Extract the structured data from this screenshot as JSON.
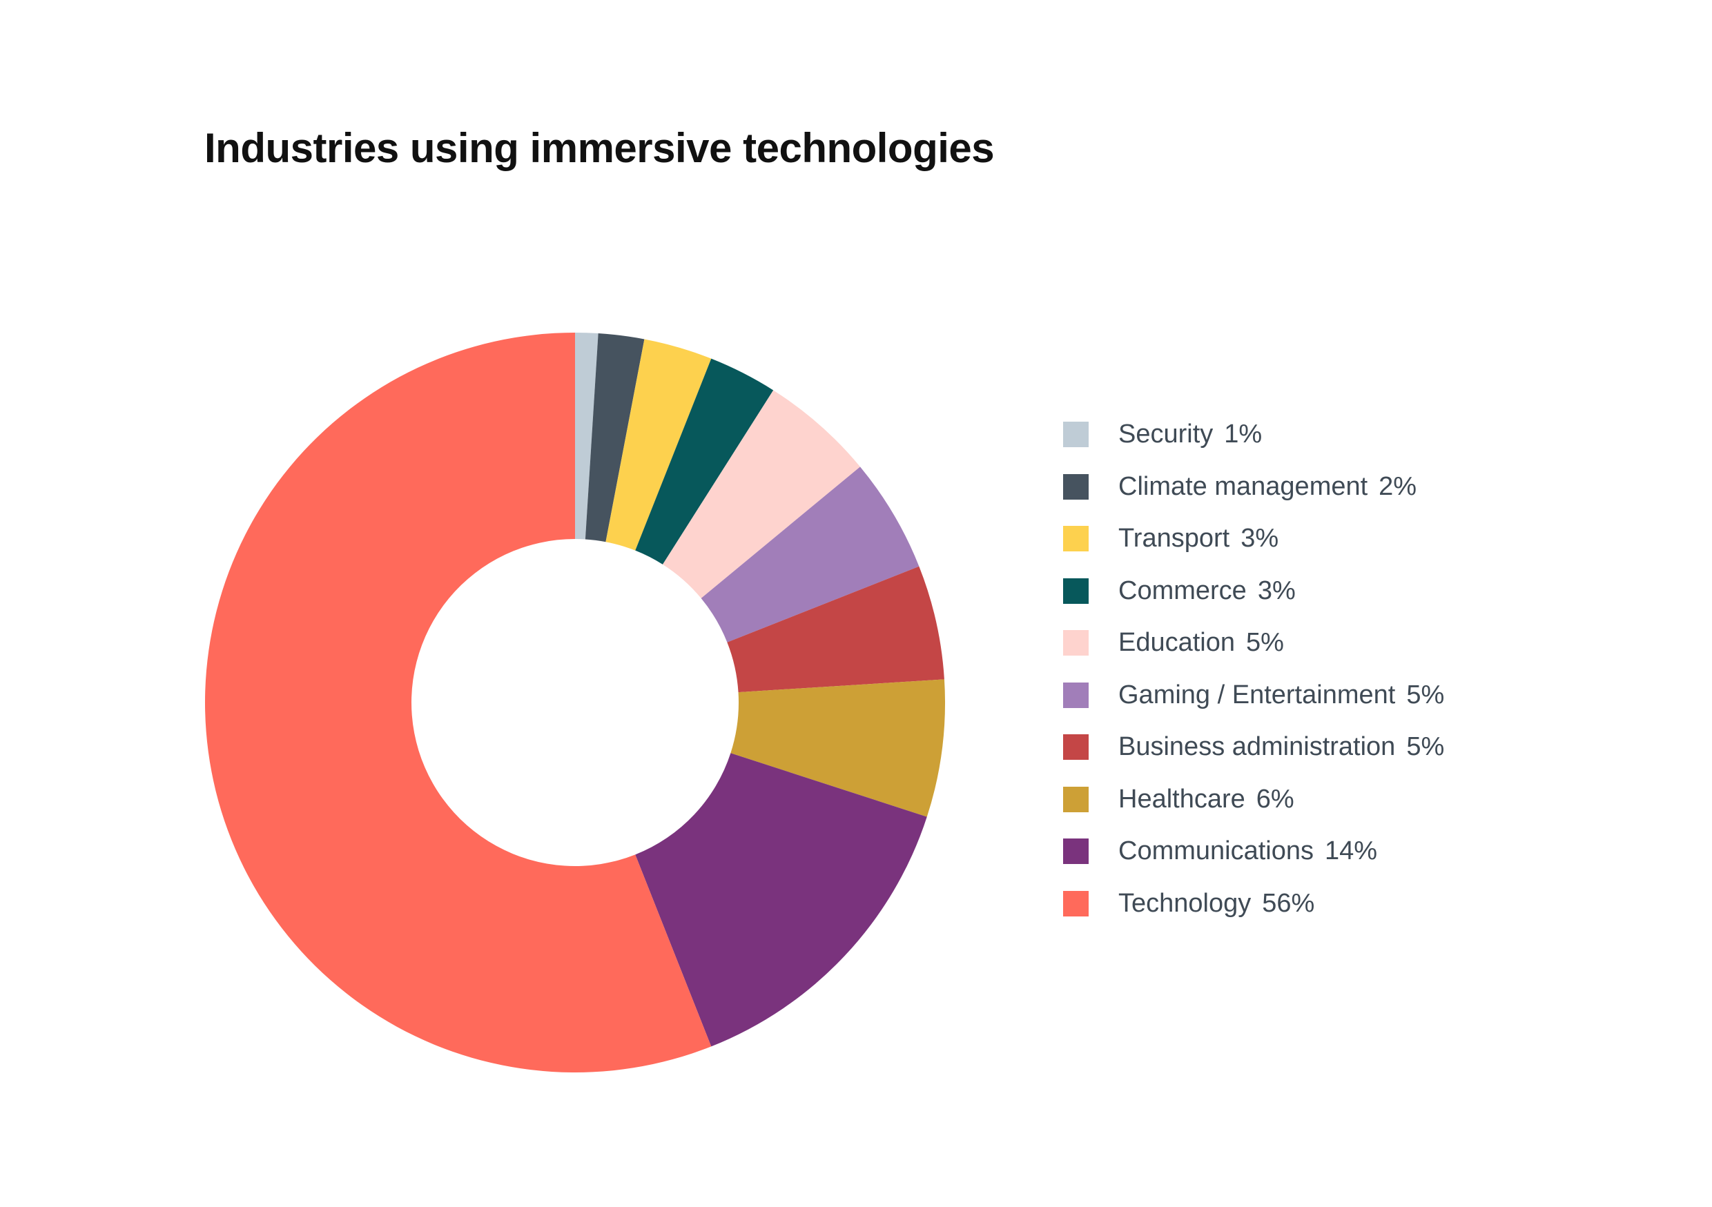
{
  "chart_data": {
    "type": "pie",
    "style": "donut",
    "title": "Industries using immersive technologies",
    "legend_position": "right",
    "unit": "%",
    "slices": [
      {
        "label": "Security",
        "value": 1,
        "display": "1%",
        "color": "#bfccd6"
      },
      {
        "label": "Climate management",
        "value": 2,
        "display": "2%",
        "color": "#46535f"
      },
      {
        "label": "Transport",
        "value": 3,
        "display": "3%",
        "color": "#fdd14e"
      },
      {
        "label": "Commerce",
        "value": 3,
        "display": "3%",
        "color": "#07585b"
      },
      {
        "label": "Education",
        "value": 5,
        "display": "5%",
        "color": "#fed3ce"
      },
      {
        "label": "Gaming / Entertainment",
        "value": 5,
        "display": "5%",
        "color": "#a17eb9"
      },
      {
        "label": "Business administration",
        "value": 5,
        "display": "5%",
        "color": "#c44646"
      },
      {
        "label": "Healthcare",
        "value": 6,
        "display": "6%",
        "color": "#cda036"
      },
      {
        "label": "Communications",
        "value": 14,
        "display": "14%",
        "color": "#7a337d"
      },
      {
        "label": "Technology",
        "value": 56,
        "display": "56%",
        "color": "#ff6a5b"
      }
    ]
  }
}
